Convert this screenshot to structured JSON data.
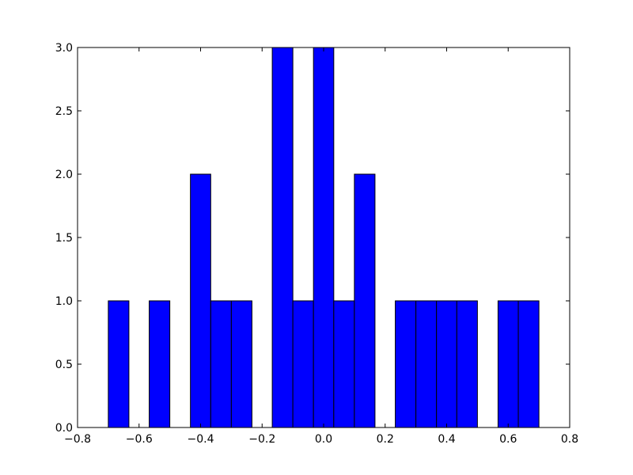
{
  "chart_data": {
    "type": "histogram",
    "bins": [
      -0.7,
      -0.633,
      -0.567,
      -0.5,
      -0.433,
      -0.367,
      -0.3,
      -0.233,
      -0.167,
      -0.1,
      -0.033,
      0.033,
      0.1,
      0.167,
      0.233,
      0.3,
      0.367,
      0.433,
      0.5,
      0.567,
      0.633,
      0.7
    ],
    "counts": [
      1,
      0,
      1,
      0,
      2,
      1,
      1,
      0,
      3,
      1,
      3,
      1,
      2,
      0,
      1,
      1,
      1,
      1,
      0,
      1,
      1
    ],
    "color": "#0000ff",
    "edgecolor": "#000000",
    "xlim": [
      -0.8,
      0.8
    ],
    "xticks": [
      {
        "value": -0.8,
        "label": "−0.8"
      },
      {
        "value": -0.6,
        "label": "−0.6"
      },
      {
        "value": -0.4,
        "label": "−0.4"
      },
      {
        "value": -0.2,
        "label": "−0.2"
      },
      {
        "value": 0,
        "label": "0.0"
      },
      {
        "value": 0.2,
        "label": "0.2"
      },
      {
        "value": 0.4,
        "label": "0.4"
      },
      {
        "value": 0.6,
        "label": "0.6"
      },
      {
        "value": 0.8,
        "label": "0.8"
      }
    ],
    "ylim": [
      0,
      3
    ],
    "yticks": [
      {
        "value": 0,
        "label": "0.0"
      },
      {
        "value": 0.5,
        "label": "0.5"
      },
      {
        "value": 1,
        "label": "1.0"
      },
      {
        "value": 1.5,
        "label": "1.5"
      },
      {
        "value": 2,
        "label": "2.0"
      },
      {
        "value": 2.5,
        "label": "2.5"
      },
      {
        "value": 3,
        "label": "3.0"
      }
    ],
    "grid": false
  }
}
